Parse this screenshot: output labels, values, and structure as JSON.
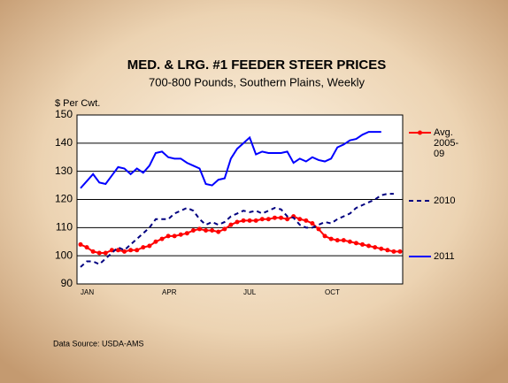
{
  "chart_data": {
    "type": "line",
    "title": "MED. & LRG. #1 FEEDER STEER PRICES",
    "subtitle": "700-800 Pounds, Southern Plains, Weekly",
    "y_label": "$ Per Cwt.",
    "note": "Data Source: USDA-AMS",
    "categories": [
      "JAN",
      null,
      null,
      null,
      null,
      null,
      null,
      null,
      null,
      null,
      null,
      null,
      null,
      "APR",
      null,
      null,
      null,
      null,
      null,
      null,
      null,
      null,
      null,
      null,
      null,
      null,
      "JUL",
      null,
      null,
      null,
      null,
      null,
      null,
      null,
      null,
      null,
      null,
      null,
      null,
      "OCT",
      null,
      null,
      null,
      null,
      null,
      null,
      null,
      null,
      null,
      null,
      null,
      null
    ],
    "series": [
      {
        "name": "Avg. 2005-09",
        "color": "#ff0000",
        "style": "solid",
        "marker": true,
        "values": [
          104,
          103,
          101.5,
          101,
          101,
          102,
          102,
          101.5,
          102,
          102,
          103,
          103.5,
          105,
          106,
          107,
          107,
          107.5,
          108,
          109,
          109.5,
          109,
          109,
          108.5,
          109.5,
          111,
          112,
          112.5,
          112.5,
          112.5,
          113,
          113,
          113.5,
          113.5,
          113,
          114,
          113,
          112.5,
          111.5,
          109.5,
          107,
          106,
          105.5,
          105.5,
          105,
          104.5,
          104,
          103.5,
          103,
          102.5,
          102,
          101.5,
          101.5
        ]
      },
      {
        "name": "2010",
        "color": "#000080",
        "style": "dashed",
        "marker": false,
        "values": [
          96,
          98,
          98,
          97,
          99,
          101,
          103,
          102,
          104,
          106,
          108,
          110,
          113,
          113,
          113,
          115,
          116,
          117,
          116,
          113,
          111,
          112,
          111,
          112,
          114,
          115,
          116,
          115.5,
          116,
          115,
          116,
          117,
          116.5,
          114,
          113.5,
          111,
          110,
          110,
          111,
          112,
          111.5,
          113,
          114,
          115,
          117,
          118,
          119,
          120,
          121.5,
          122,
          122,
          null
        ]
      },
      {
        "name": "2011",
        "color": "#0000ff",
        "style": "solid",
        "marker": false,
        "values": [
          124,
          126.5,
          129,
          126,
          125.5,
          128.5,
          131.5,
          131,
          129,
          131,
          129.5,
          132,
          136.5,
          137,
          135,
          134.5,
          134.5,
          133,
          132,
          131,
          125.5,
          125,
          127,
          127.5,
          134.5,
          138,
          140,
          142,
          136,
          137,
          136.5,
          136.5,
          136.5,
          137,
          133,
          134.5,
          133.5,
          135,
          134,
          133.5,
          134.5,
          138.5,
          139.5,
          141,
          141.5,
          143,
          144,
          144,
          144,
          null,
          null,
          null
        ]
      }
    ],
    "ylim": [
      90,
      150
    ],
    "yticks": [
      90,
      100,
      110,
      120,
      130,
      140,
      150
    ],
    "grid": true
  }
}
